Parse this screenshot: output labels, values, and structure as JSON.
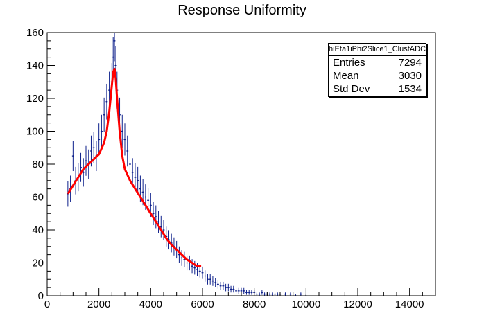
{
  "title": "Response Uniformity",
  "stats": {
    "histogram_name": "hiEta1iPhi2Slice1_ClustADC",
    "rows": [
      {
        "label": "Entries",
        "value": "7294"
      },
      {
        "label": "Mean",
        "value": "3030"
      },
      {
        "label": "Std Dev",
        "value": "1534"
      }
    ]
  },
  "colors": {
    "data": "#0c1f8a",
    "fit": "#ff0000",
    "axis": "#000000"
  },
  "chart_data": {
    "type": "scatter",
    "title": "Response Uniformity",
    "xlabel": "",
    "ylabel": "",
    "xlim": [
      0,
      15000
    ],
    "ylim": [
      0,
      160
    ],
    "x_ticks": [
      0,
      2000,
      4000,
      6000,
      8000,
      10000,
      12000,
      14000
    ],
    "x_tick_labels": [
      "0",
      "2000",
      "4000",
      "6000",
      "8000",
      "10000",
      "12000",
      "14000"
    ],
    "y_ticks": [
      0,
      20,
      40,
      60,
      80,
      100,
      120,
      140,
      160
    ],
    "y_tick_labels": [
      "0",
      "20",
      "40",
      "60",
      "80",
      "100",
      "120",
      "140",
      "160"
    ],
    "series": [
      {
        "kind": "histogram-points-with-error-bars",
        "x": [
          800,
          900,
          1000,
          1100,
          1200,
          1300,
          1400,
          1500,
          1600,
          1700,
          1800,
          1900,
          2000,
          2100,
          2200,
          2300,
          2400,
          2500,
          2550,
          2600,
          2650,
          2700,
          2800,
          2900,
          3000,
          3100,
          3200,
          3300,
          3400,
          3500,
          3600,
          3700,
          3800,
          3900,
          4000,
          4100,
          4200,
          4300,
          4400,
          4500,
          4600,
          4700,
          4800,
          4900,
          5000,
          5100,
          5200,
          5300,
          5400,
          5500,
          5600,
          5700,
          5800,
          5900,
          6000,
          6100,
          6200,
          6300,
          6400,
          6500,
          6600,
          6700,
          6800,
          6900,
          7000,
          7100,
          7200,
          7300,
          7400,
          7500,
          7600,
          7700,
          7800,
          7900,
          8000,
          8100,
          8200,
          8300,
          8400,
          8500,
          8600,
          8700,
          8800,
          8900,
          9000,
          9200,
          9400,
          9600,
          9800,
          10000
        ],
        "y": [
          62,
          65,
          85,
          70,
          72,
          78,
          75,
          82,
          80,
          88,
          90,
          85,
          95,
          100,
          110,
          118,
          125,
          130,
          145,
          155,
          140,
          125,
          110,
          100,
          95,
          88,
          80,
          75,
          72,
          70,
          65,
          63,
          60,
          58,
          55,
          50,
          48,
          45,
          42,
          40,
          36,
          34,
          32,
          30,
          28,
          25,
          23,
          22,
          20,
          20,
          18,
          17,
          16,
          15,
          14,
          12,
          10,
          10,
          9,
          8,
          7,
          6,
          6,
          5,
          5,
          4,
          4,
          3,
          3,
          3,
          3,
          2,
          2,
          2,
          2,
          1,
          1,
          2,
          1,
          1,
          1,
          1,
          1,
          1,
          1,
          1,
          1,
          0,
          1,
          0
        ]
      },
      {
        "kind": "fit",
        "name": "",
        "x": [
          800,
          1000,
          1200,
          1400,
          1600,
          1800,
          2000,
          2200,
          2300,
          2400,
          2500,
          2550,
          2600,
          2650,
          2700,
          2800,
          2900,
          3000,
          3200,
          3400,
          3600,
          3800,
          4000,
          4200,
          4400,
          4600,
          4800,
          5000,
          5200,
          5400,
          5600,
          5800,
          5950
        ],
        "y": [
          62,
          67,
          72,
          77,
          80,
          83,
          86,
          93,
          100,
          112,
          128,
          136,
          138,
          132,
          120,
          100,
          85,
          77,
          70,
          65,
          60,
          55,
          50,
          45,
          40,
          35,
          31,
          28,
          25,
          22,
          20,
          18,
          18
        ]
      }
    ]
  }
}
